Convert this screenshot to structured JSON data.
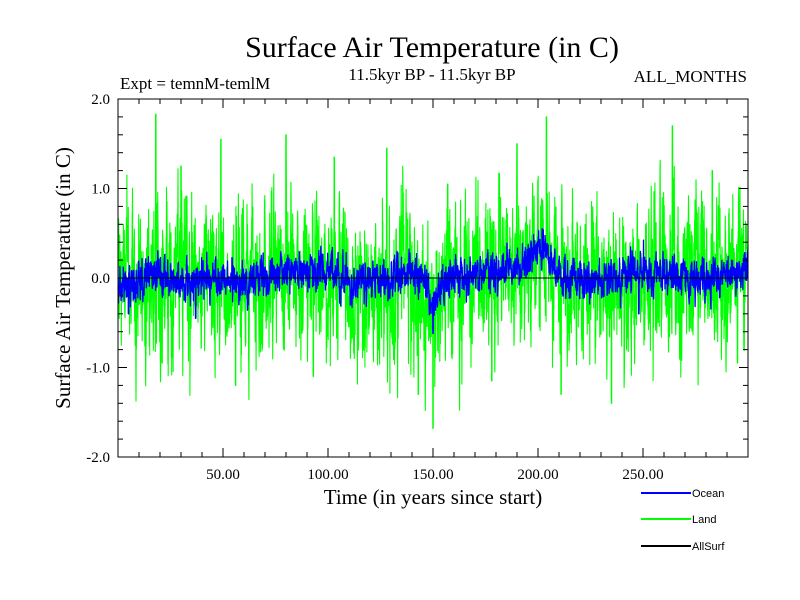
{
  "chart_data": {
    "type": "line",
    "title": "Surface Air Temperature (in C)",
    "subtitle_left": "Expt = temnM-temlM",
    "subtitle_center": "11.5kyr BP - 11.5kyr BP",
    "subtitle_right": "ALL_MONTHS",
    "xlabel": "Time (in years since start)",
    "ylabel": "Surface Air Temperature (in C)",
    "xlim": [
      0,
      300
    ],
    "ylim": [
      -2.0,
      2.0
    ],
    "x_ticks": [
      50,
      100,
      150,
      200,
      250
    ],
    "x_tick_labels": [
      "50.00",
      "100.00",
      "150.00",
      "200.00",
      "250.00"
    ],
    "y_ticks": [
      -2.0,
      -1.0,
      0.0,
      1.0,
      2.0
    ],
    "y_tick_labels": [
      "-2.0",
      "-1.0",
      "0.0",
      "1.0",
      "2.0"
    ],
    "samples_per_year": 12,
    "series": [
      {
        "name": "Land",
        "color": "#00ff00",
        "amplitude": 0.35,
        "envelope": [
          [
            0,
            0.0
          ],
          [
            20,
            0.05
          ],
          [
            40,
            -0.05
          ],
          [
            60,
            0.0
          ],
          [
            80,
            0.05
          ],
          [
            100,
            0.0
          ],
          [
            120,
            -0.05
          ],
          [
            140,
            0.0
          ],
          [
            150,
            -0.25
          ],
          [
            160,
            0.0
          ],
          [
            180,
            0.05
          ],
          [
            200,
            0.25
          ],
          [
            210,
            0.1
          ],
          [
            220,
            0.0
          ],
          [
            240,
            -0.05
          ],
          [
            260,
            0.0
          ],
          [
            280,
            0.05
          ],
          [
            300,
            0.0
          ]
        ],
        "peaks": [
          {
            "x": 18,
            "y": 1.83
          },
          {
            "x": 21,
            "y": -0.95
          },
          {
            "x": 30,
            "y": 1.25
          },
          {
            "x": 49,
            "y": 1.55
          },
          {
            "x": 56,
            "y": -1.2
          },
          {
            "x": 80,
            "y": 1.6
          },
          {
            "x": 93,
            "y": -1.1
          },
          {
            "x": 103,
            "y": 1.35
          },
          {
            "x": 128,
            "y": 1.45
          },
          {
            "x": 143,
            "y": -1.3
          },
          {
            "x": 150,
            "y": -1.68
          },
          {
            "x": 157,
            "y": 1.05
          },
          {
            "x": 178,
            "y": -1.15
          },
          {
            "x": 190,
            "y": 1.5
          },
          {
            "x": 204,
            "y": 1.8
          },
          {
            "x": 211,
            "y": -1.3
          },
          {
            "x": 235,
            "y": -1.4
          },
          {
            "x": 264,
            "y": 1.7
          },
          {
            "x": 283,
            "y": 1.2
          },
          {
            "x": 295,
            "y": -0.95
          }
        ]
      },
      {
        "name": "Ocean",
        "color": "#0000ff",
        "amplitude": 0.09,
        "envelope": [
          [
            0,
            -0.1
          ],
          [
            15,
            0.05
          ],
          [
            30,
            -0.05
          ],
          [
            45,
            0.0
          ],
          [
            60,
            -0.05
          ],
          [
            80,
            0.1
          ],
          [
            100,
            0.05
          ],
          [
            115,
            -0.05
          ],
          [
            130,
            0.0
          ],
          [
            145,
            0.05
          ],
          [
            150,
            -0.3
          ],
          [
            158,
            0.0
          ],
          [
            175,
            0.05
          ],
          [
            190,
            0.1
          ],
          [
            200,
            0.3
          ],
          [
            206,
            0.25
          ],
          [
            212,
            0.0
          ],
          [
            230,
            -0.05
          ],
          [
            250,
            0.05
          ],
          [
            270,
            0.0
          ],
          [
            300,
            0.05
          ]
        ],
        "peaks": [
          {
            "x": 150,
            "y": -0.62
          },
          {
            "x": 202,
            "y": 0.55
          },
          {
            "x": 5,
            "y": -0.4
          },
          {
            "x": 37,
            "y": -0.45
          },
          {
            "x": 248,
            "y": -0.4
          }
        ]
      },
      {
        "name": "AllSurf",
        "color": "#000000",
        "amplitude": 0,
        "envelope": [],
        "peaks": []
      }
    ]
  }
}
